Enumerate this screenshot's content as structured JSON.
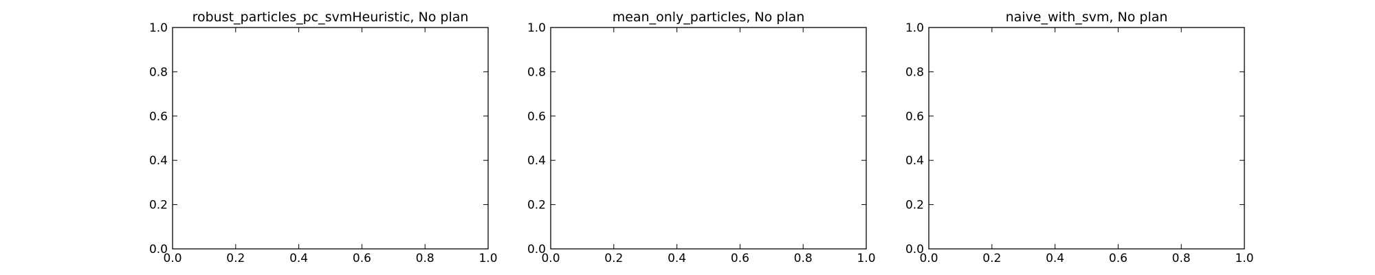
{
  "chart_data": [
    {
      "type": "line",
      "title": "robust_particles_pc_svmHeuristic, No plan",
      "xlabel": "",
      "ylabel": "",
      "xlim": [
        0.0,
        1.0
      ],
      "ylim": [
        0.0,
        1.0
      ],
      "xticks": [
        "0.0",
        "0.2",
        "0.4",
        "0.6",
        "0.8",
        "1.0"
      ],
      "yticks": [
        "0.0",
        "0.2",
        "0.4",
        "0.6",
        "0.8",
        "1.0"
      ],
      "grid": false,
      "series": []
    },
    {
      "type": "line",
      "title": "mean_only_particles, No plan",
      "xlabel": "",
      "ylabel": "",
      "xlim": [
        0.0,
        1.0
      ],
      "ylim": [
        0.0,
        1.0
      ],
      "xticks": [
        "0.0",
        "0.2",
        "0.4",
        "0.6",
        "0.8",
        "1.0"
      ],
      "yticks": [
        "0.0",
        "0.2",
        "0.4",
        "0.6",
        "0.8",
        "1.0"
      ],
      "grid": false,
      "series": []
    },
    {
      "type": "line",
      "title": "naive_with_svm, No plan",
      "xlabel": "",
      "ylabel": "",
      "xlim": [
        0.0,
        1.0
      ],
      "ylim": [
        0.0,
        1.0
      ],
      "xticks": [
        "0.0",
        "0.2",
        "0.4",
        "0.6",
        "0.8",
        "1.0"
      ],
      "yticks": [
        "0.0",
        "0.2",
        "0.4",
        "0.6",
        "0.8",
        "1.0"
      ],
      "grid": false,
      "series": []
    }
  ]
}
